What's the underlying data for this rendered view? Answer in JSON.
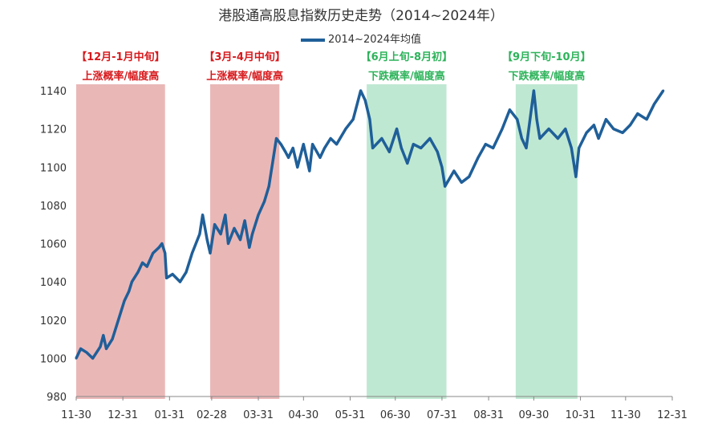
{
  "chart_data": {
    "type": "line",
    "title": "港股通高股息指数历史走势（2014~2024年）",
    "xlabel": "",
    "ylabel": "",
    "ylim": [
      980,
      1140
    ],
    "yticks": [
      980,
      1000,
      1020,
      1040,
      1060,
      1080,
      1100,
      1120,
      1140
    ],
    "xticks": [
      "11-30",
      "12-31",
      "01-31",
      "02-28",
      "03-31",
      "04-30",
      "05-31",
      "06-30",
      "07-31",
      "08-31",
      "09-30",
      "10-31",
      "11-30",
      "12-31"
    ],
    "grid": false,
    "legend": "top",
    "series": [
      {
        "name": "2014~2024年均值",
        "color": "#1f5f99",
        "x": [
          "11-30",
          "12-03",
          "12-07",
          "12-11",
          "12-16",
          "12-18",
          "12-20",
          "12-24",
          "12-28",
          "01-01",
          "01-04",
          "01-06",
          "01-10",
          "01-13",
          "01-16",
          "01-20",
          "01-24",
          "01-26",
          "01-28",
          "01-29",
          "02-02",
          "02-07",
          "02-11",
          "02-15",
          "02-20",
          "02-22",
          "02-25",
          "02-27",
          "03-02",
          "03-06",
          "03-09",
          "03-11",
          "03-15",
          "03-19",
          "03-22",
          "03-25",
          "03-27",
          "03-31",
          "04-04",
          "04-07",
          "04-10",
          "04-12",
          "04-15",
          "04-18",
          "04-20",
          "04-23",
          "04-26",
          "04-30",
          "05-04",
          "05-06",
          "05-11",
          "05-14",
          "05-18",
          "05-22",
          "05-28",
          "06-02",
          "06-07",
          "06-10",
          "06-13",
          "06-15",
          "06-21",
          "06-26",
          "07-01",
          "07-04",
          "07-08",
          "07-12",
          "07-17",
          "07-23",
          "07-28",
          "07-31",
          "08-02",
          "08-08",
          "08-13",
          "08-18",
          "08-24",
          "08-29",
          "09-03",
          "09-09",
          "09-14",
          "09-19",
          "09-22",
          "09-25",
          "09-30",
          "10-02",
          "10-04",
          "10-10",
          "10-16",
          "10-21",
          "10-25",
          "10-28",
          "10-30",
          "11-04",
          "11-09",
          "11-12",
          "11-17",
          "11-22",
          "11-28",
          "12-03",
          "12-08",
          "12-14",
          "12-19",
          "12-25"
        ],
        "y": [
          1000,
          1005,
          1003,
          1000,
          1006,
          1012,
          1005,
          1010,
          1020,
          1030,
          1035,
          1040,
          1045,
          1050,
          1048,
          1055,
          1058,
          1060,
          1055,
          1042,
          1044,
          1040,
          1045,
          1055,
          1065,
          1075,
          1062,
          1055,
          1070,
          1065,
          1075,
          1060,
          1068,
          1062,
          1072,
          1058,
          1065,
          1075,
          1082,
          1090,
          1105,
          1115,
          1112,
          1108,
          1105,
          1110,
          1100,
          1112,
          1098,
          1112,
          1105,
          1110,
          1115,
          1112,
          1120,
          1125,
          1140,
          1135,
          1125,
          1110,
          1115,
          1108,
          1120,
          1110,
          1102,
          1112,
          1110,
          1115,
          1108,
          1100,
          1090,
          1098,
          1092,
          1095,
          1105,
          1112,
          1110,
          1120,
          1130,
          1125,
          1115,
          1110,
          1140,
          1125,
          1115,
          1120,
          1115,
          1120,
          1110,
          1095,
          1110,
          1118,
          1122,
          1115,
          1125,
          1120,
          1118,
          1122,
          1128,
          1125,
          1133,
          1140
        ]
      }
    ],
    "shaded_regions": [
      {
        "start": "11-30",
        "end": "01-28",
        "color": "#eab7b7",
        "label": "【12月-1月中旬】",
        "note": "上涨概率/幅度高",
        "tone": "red"
      },
      {
        "start": "02-27",
        "end": "04-14",
        "color": "#eab7b7",
        "label": "【3月-4月中旬】",
        "note": "上涨概率/幅度高",
        "tone": "red"
      },
      {
        "start": "06-11",
        "end": "08-03",
        "color": "#bfe8d2",
        "label": "【6月上旬-8月初】",
        "note": "下跌概率/幅度高",
        "tone": "green"
      },
      {
        "start": "09-18",
        "end": "10-29",
        "color": "#bfe8d2",
        "label": "【9月下旬-10月】",
        "note": "下跌概率/幅度高",
        "tone": "green"
      }
    ]
  }
}
